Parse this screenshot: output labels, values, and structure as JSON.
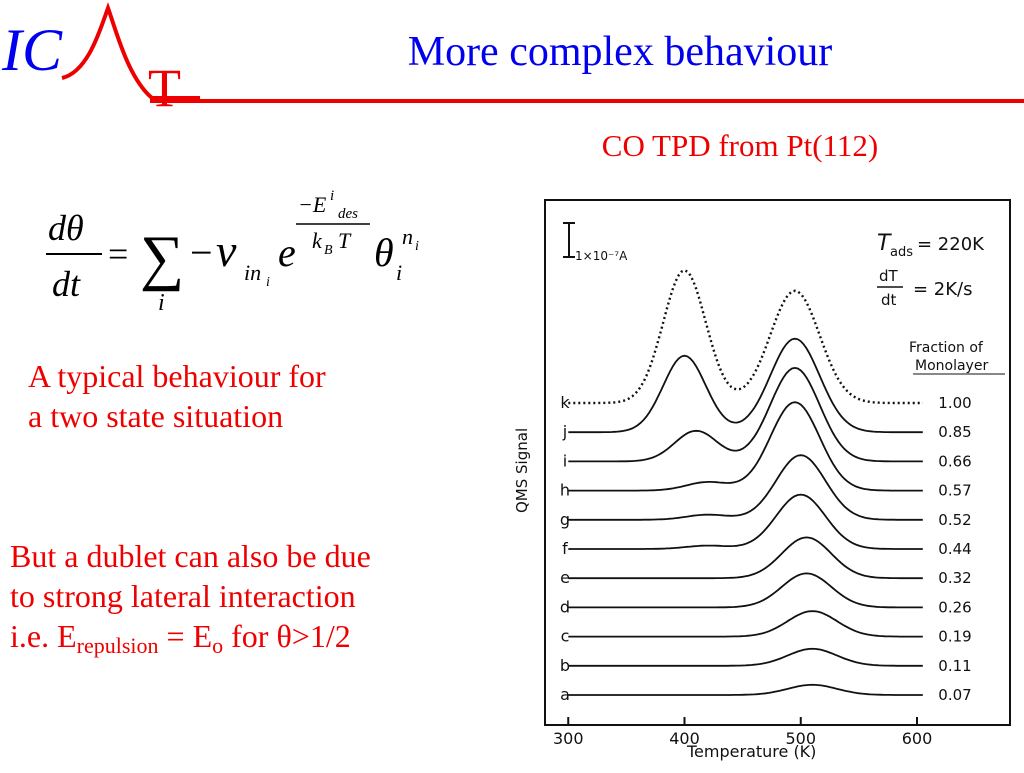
{
  "logo": {
    "letters": "IC",
    "letter_t": "T"
  },
  "title": "More complex behaviour",
  "figure_caption": "CO TPD from Pt(112)",
  "equation": {
    "d_theta": "dθ",
    "dt": "dt",
    "equals": "=",
    "sum": "∑",
    "sum_index": "i",
    "minus": "−",
    "nu": "ν",
    "nu_sub": "in",
    "nu_sub_sub": "i",
    "e": "e",
    "exp_minus_E": "−E",
    "exp_sup_i": "i",
    "exp_sub_des": "des",
    "exp_kB": "k",
    "exp_kB_sub": "B",
    "exp_T": "T",
    "theta": "θ",
    "theta_sub": "i",
    "theta_sup": "n",
    "theta_sup_sub": "i"
  },
  "text_typical": {
    "line1": "A typical behaviour for",
    "line2": "a two state situation"
  },
  "text_dublet": {
    "line1": "But a dublet can also be due",
    "line2": "to strong lateral interaction",
    "line3_pre": "i.e. E",
    "line3_sub1": "repulsion",
    "line3_mid": " = E",
    "line3_sub2": "o",
    "line3_post": " for θ>1/2"
  },
  "chart_data": {
    "type": "line",
    "title": "",
    "xlabel": "Temperature (K)",
    "ylabel": "QMS Signal",
    "xlim": [
      280,
      680
    ],
    "xticks": [
      300,
      400,
      500,
      600
    ],
    "grid": false,
    "scale_bar_label": "1×10⁻⁷A",
    "conditions": {
      "t_ads": "= 220K",
      "dt_num": "dT",
      "dt_den": "dt",
      "rate": "= 2K/s"
    },
    "legend_title": [
      "Fraction of",
      "Monolayer"
    ],
    "series": [
      {
        "name": "k",
        "coverage": "1.00",
        "dotted": true,
        "peak1": {
          "T": 400,
          "height": 0.78
        },
        "peak2": {
          "T": 495,
          "height": 0.66
        }
      },
      {
        "name": "j",
        "coverage": "0.85",
        "dotted": false,
        "peak1": {
          "T": 400,
          "height": 0.45
        },
        "peak2": {
          "T": 495,
          "height": 0.55
        }
      },
      {
        "name": "i",
        "coverage": "0.66",
        "dotted": false,
        "peak1": {
          "T": 410,
          "height": 0.18
        },
        "peak2": {
          "T": 495,
          "height": 0.55
        }
      },
      {
        "name": "h",
        "coverage": "0.57",
        "dotted": false,
        "peak1": {
          "T": 420,
          "height": 0.05
        },
        "peak2": {
          "T": 495,
          "height": 0.52
        }
      },
      {
        "name": "g",
        "coverage": "0.52",
        "dotted": false,
        "peak1": {
          "T": 420,
          "height": 0.03
        },
        "peak2": {
          "T": 500,
          "height": 0.38
        }
      },
      {
        "name": "f",
        "coverage": "0.44",
        "dotted": false,
        "peak1": {
          "T": 420,
          "height": 0.02
        },
        "peak2": {
          "T": 500,
          "height": 0.32
        }
      },
      {
        "name": "e",
        "coverage": "0.32",
        "dotted": false,
        "peak1": {
          "T": 420,
          "height": 0.0
        },
        "peak2": {
          "T": 505,
          "height": 0.24
        }
      },
      {
        "name": "d",
        "coverage": "0.26",
        "dotted": false,
        "peak1": {
          "T": 420,
          "height": 0.0
        },
        "peak2": {
          "T": 505,
          "height": 0.2
        }
      },
      {
        "name": "c",
        "coverage": "0.19",
        "dotted": false,
        "peak1": {
          "T": 420,
          "height": 0.0
        },
        "peak2": {
          "T": 510,
          "height": 0.15
        }
      },
      {
        "name": "b",
        "coverage": "0.11",
        "dotted": false,
        "peak1": {
          "T": 420,
          "height": 0.0
        },
        "peak2": {
          "T": 510,
          "height": 0.1
        }
      },
      {
        "name": "a",
        "coverage": "0.07",
        "dotted": false,
        "peak1": {
          "T": 420,
          "height": 0.0
        },
        "peak2": {
          "T": 510,
          "height": 0.06
        }
      }
    ]
  },
  "colors": {
    "title": "#0000ee",
    "accent": "#ee0000",
    "chart_ink": "#111111"
  }
}
